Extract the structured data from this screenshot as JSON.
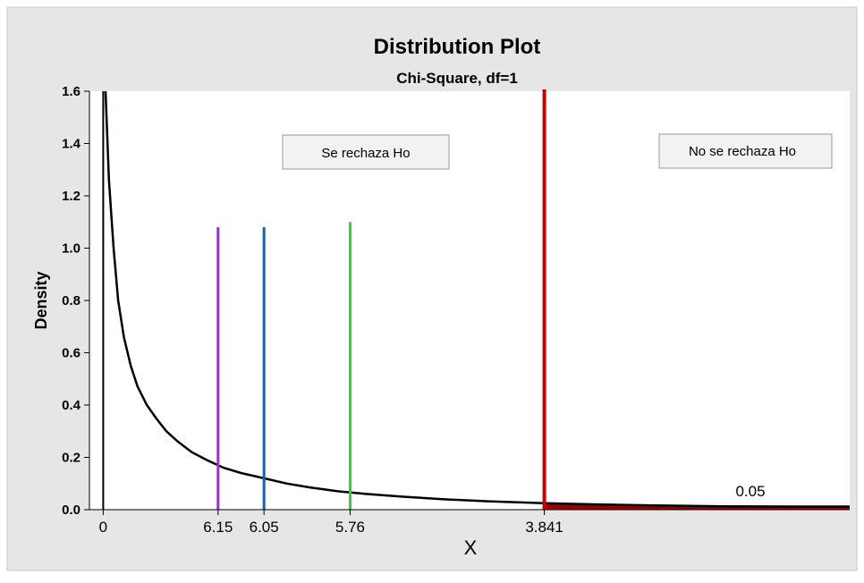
{
  "chart_data": {
    "type": "line",
    "title": "Distribution Plot",
    "subtitle": "Chi-Square, df=1",
    "xlabel": "X",
    "ylabel": "Density",
    "ylim": [
      0,
      1.6
    ],
    "y_ticks": [
      "0.0",
      "0.2",
      "0.4",
      "0.6",
      "0.8",
      "1.0",
      "1.2",
      "1.4",
      "1.6"
    ],
    "x_tick_labels": [
      "0",
      "6.15",
      "6.05",
      "5.76",
      "3.841"
    ],
    "series": [
      {
        "points": [
          [
            0.02,
            1.6
          ],
          [
            0.05,
            1.26
          ],
          [
            0.09,
            1.0
          ],
          [
            0.13,
            0.8
          ],
          [
            0.18,
            0.66
          ],
          [
            0.24,
            0.55
          ],
          [
            0.3,
            0.47
          ],
          [
            0.38,
            0.4
          ],
          [
            0.46,
            0.35
          ],
          [
            0.55,
            0.3
          ],
          [
            0.65,
            0.26
          ],
          [
            0.77,
            0.22
          ],
          [
            0.9,
            0.19
          ],
          [
            1.05,
            0.16
          ],
          [
            1.2,
            0.14
          ],
          [
            1.4,
            0.12
          ],
          [
            1.6,
            0.1
          ],
          [
            1.8,
            0.085
          ],
          [
            2.05,
            0.07
          ],
          [
            2.3,
            0.06
          ],
          [
            2.6,
            0.05
          ],
          [
            2.95,
            0.04
          ],
          [
            3.35,
            0.032
          ],
          [
            3.841,
            0.025
          ],
          [
            4.3,
            0.02
          ],
          [
            4.8,
            0.016
          ],
          [
            5.4,
            0.013
          ],
          [
            6.0,
            0.012
          ],
          [
            6.5,
            0.012
          ]
        ]
      }
    ],
    "vertical_lines": [
      {
        "label": "6.15",
        "x": 1.0,
        "y_top": 1.08,
        "color": "#9932CC"
      },
      {
        "label": "6.05",
        "x": 1.4,
        "y_top": 1.08,
        "color": "#1A5FAA"
      },
      {
        "label": "5.76",
        "x": 2.15,
        "y_top": 1.1,
        "color": "#5DB55D"
      },
      {
        "label": "3.841",
        "x": 3.841,
        "y_top": 1.64,
        "color": "#CC0000"
      }
    ],
    "x_axis_range": [
      -0.12,
      6.5
    ],
    "shaded_tail": {
      "from": 3.841,
      "area_label": "0.05",
      "color": "#990000"
    },
    "annotations": [
      {
        "text": "Se rechaza Ho"
      },
      {
        "text": "No se rechaza Ho"
      }
    ],
    "grid": false,
    "colors": {
      "frame_bg": "#e6e6e6",
      "plot_bg": "#ffffff",
      "curve": "#000000"
    }
  }
}
